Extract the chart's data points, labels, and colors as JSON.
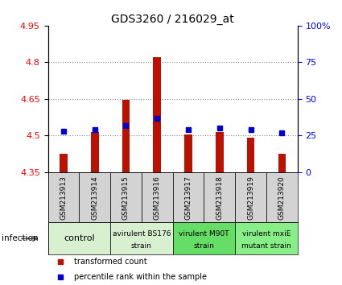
{
  "title": "GDS3260 / 216029_at",
  "samples": [
    "GSM213913",
    "GSM213914",
    "GSM213915",
    "GSM213916",
    "GSM213917",
    "GSM213918",
    "GSM213919",
    "GSM213920"
  ],
  "red_values": [
    4.425,
    4.515,
    4.645,
    4.82,
    4.505,
    4.515,
    4.49,
    4.425
  ],
  "blue_values": [
    28,
    29,
    32,
    37,
    29,
    30,
    29,
    27
  ],
  "ylim_left": [
    4.35,
    4.95
  ],
  "ylim_right": [
    0,
    100
  ],
  "yticks_left": [
    4.35,
    4.5,
    4.65,
    4.8,
    4.95
  ],
  "yticks_right": [
    0,
    25,
    50,
    75,
    100
  ],
  "ytick_labels_left": [
    "4.35",
    "4.5",
    "4.65",
    "4.8",
    "4.95"
  ],
  "ytick_labels_right": [
    "0",
    "25",
    "50",
    "75",
    "100%"
  ],
  "hlines": [
    4.5,
    4.65,
    4.8
  ],
  "groups": [
    {
      "label": "control",
      "start": 0,
      "end": 2,
      "color": "#d8f0d0"
    },
    {
      "label": "avirulent BS176\nstrain",
      "start": 2,
      "end": 4,
      "color": "#d8f0d0"
    },
    {
      "label": "virulent M90T\nstrain",
      "start": 4,
      "end": 6,
      "color": "#66dd66"
    },
    {
      "label": "virulent mxiE\nmutant strain",
      "start": 6,
      "end": 8,
      "color": "#88ee88"
    }
  ],
  "bar_color": "#bb1100",
  "dot_color": "#0000cc",
  "baseline": 4.35,
  "bar_width": 0.25,
  "background_plot": "#ffffff",
  "sample_cell_color": "#d3d3d3",
  "infection_label": "infection",
  "legend_red": "transformed count",
  "legend_blue": "percentile rank within the sample",
  "title_fontsize": 10,
  "tick_fontsize": 8,
  "sample_fontsize": 6.5,
  "group_fontsize_large": 8,
  "group_fontsize_small": 6.5,
  "legend_fontsize": 7,
  "dot_size": 4
}
